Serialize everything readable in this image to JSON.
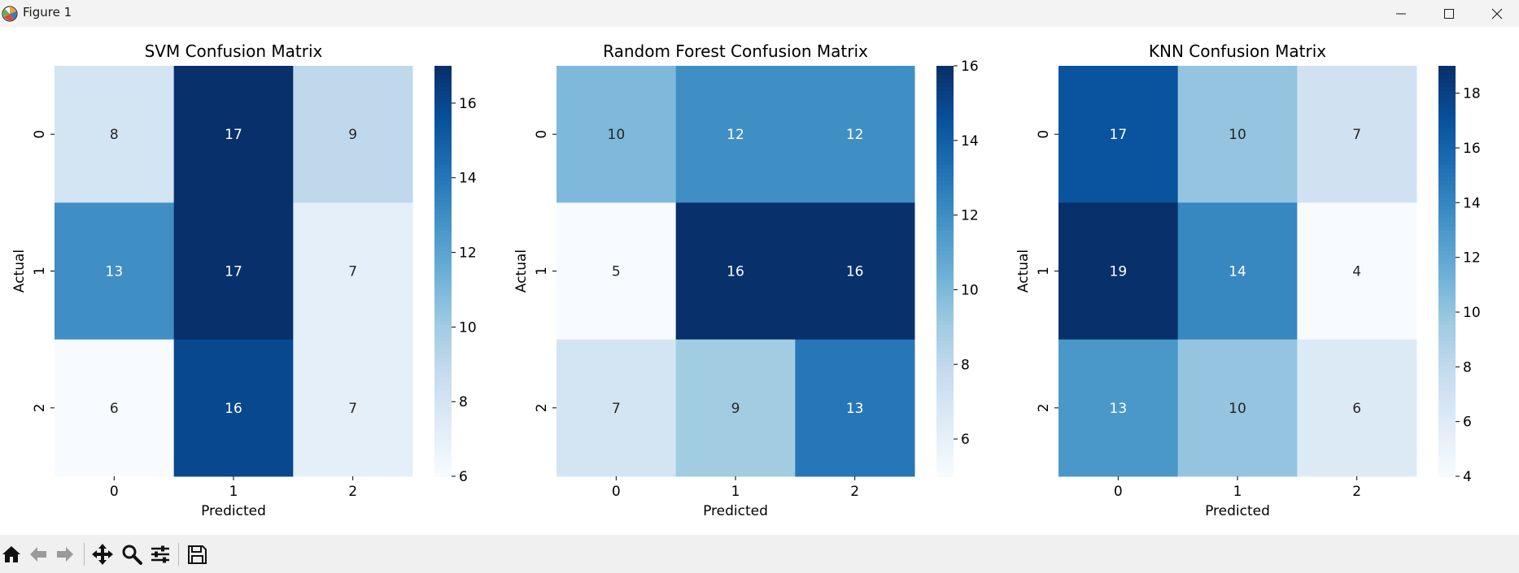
{
  "window": {
    "title": "Figure 1",
    "controls": [
      "minimize-icon",
      "maximize-icon",
      "close-icon"
    ]
  },
  "toolbar": {
    "buttons": [
      "home-icon",
      "back-icon",
      "forward-icon",
      "pan-icon",
      "zoom-icon",
      "configure-subplots-icon",
      "save-icon"
    ]
  },
  "colormap": {
    "name": "Blues",
    "low": "#f7fbff",
    "high": "#08306b"
  },
  "chart_data": [
    {
      "type": "heatmap",
      "title": "SVM Confusion Matrix",
      "xlabel": "Predicted",
      "ylabel": "Actual",
      "x_categories": [
        "0",
        "1",
        "2"
      ],
      "y_categories": [
        "0",
        "1",
        "2"
      ],
      "values": [
        [
          8,
          17,
          9
        ],
        [
          13,
          17,
          7
        ],
        [
          6,
          16,
          7
        ]
      ],
      "colorbar": {
        "range": [
          6,
          17
        ],
        "ticks": [
          6,
          8,
          10,
          12,
          14,
          16
        ]
      }
    },
    {
      "type": "heatmap",
      "title": "Random Forest Confusion Matrix",
      "xlabel": "Predicted",
      "ylabel": "Actual",
      "x_categories": [
        "0",
        "1",
        "2"
      ],
      "y_categories": [
        "0",
        "1",
        "2"
      ],
      "values": [
        [
          10,
          12,
          12
        ],
        [
          5,
          16,
          16
        ],
        [
          7,
          9,
          13
        ]
      ],
      "colorbar": {
        "range": [
          5,
          16
        ],
        "ticks": [
          6,
          8,
          10,
          12,
          14,
          16
        ]
      }
    },
    {
      "type": "heatmap",
      "title": "KNN Confusion Matrix",
      "xlabel": "Predicted",
      "ylabel": "Actual",
      "x_categories": [
        "0",
        "1",
        "2"
      ],
      "y_categories": [
        "0",
        "1",
        "2"
      ],
      "values": [
        [
          17,
          10,
          7
        ],
        [
          19,
          14,
          4
        ],
        [
          13,
          10,
          6
        ]
      ],
      "colorbar": {
        "range": [
          4,
          19
        ],
        "ticks": [
          4,
          6,
          8,
          10,
          12,
          14,
          16,
          18
        ]
      }
    }
  ]
}
